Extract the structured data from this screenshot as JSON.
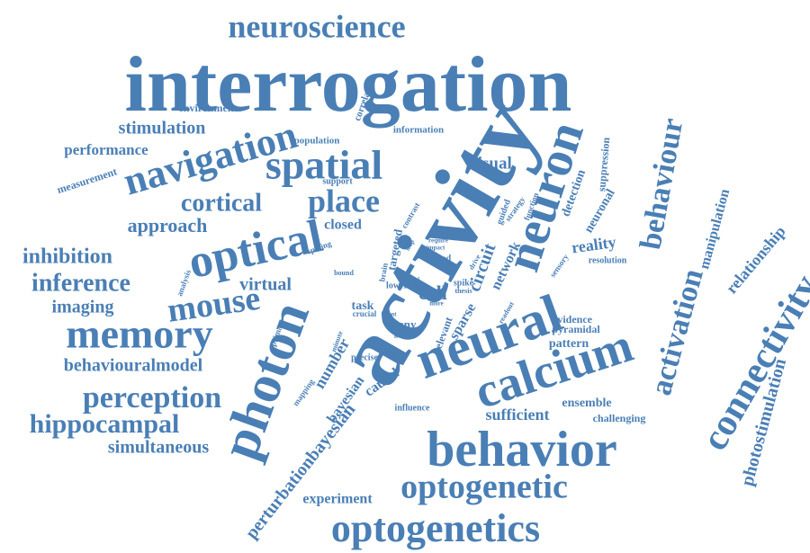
{
  "colors": {
    "word": "#4a7fb5",
    "background": "#ffffff"
  },
  "words": [
    "neuroscience",
    "interrogation",
    "environment",
    "correlation",
    "stimulation",
    "information",
    "population",
    "navigation",
    "spatial",
    "performance",
    "measurement",
    "support",
    "visual",
    "activity",
    "neuron",
    "behaviour",
    "suppression",
    "detection",
    "neuronal",
    "cortical",
    "place",
    "approach",
    "closed",
    "contrast",
    "strategy",
    "function",
    "guided",
    "manipulation",
    "optical",
    "inhibition",
    "reality",
    "relationship",
    "targeted",
    "awake",
    "require",
    "impact",
    "loop",
    "allow",
    "based",
    "drive",
    "spiking",
    "network",
    "circuit",
    "resolution",
    "sensory",
    "inference",
    "analysis",
    "bound",
    "brain",
    "virtual",
    "lower",
    "cell",
    "spike",
    "thesis",
    "local",
    "mouse",
    "imaging",
    "task",
    "crucial",
    "more",
    "latent",
    "readout",
    "activation",
    "connectivity",
    "memory",
    "primary",
    "minute",
    "many",
    "group",
    "sparse",
    "relevant",
    "evidence",
    "pyramidal",
    "pattern",
    "neural",
    "photon",
    "number",
    "bayesian",
    "mapping",
    "precise",
    "causal",
    "behaviouralmodel",
    "calcium",
    "perception",
    "influence",
    "ensemble",
    "sufficient",
    "challenging",
    "hippocampal",
    "perturbationbayesian",
    "behavior",
    "simultaneous",
    "photostimulation",
    "optogenetic",
    "experiment",
    "optogenetics"
  ]
}
